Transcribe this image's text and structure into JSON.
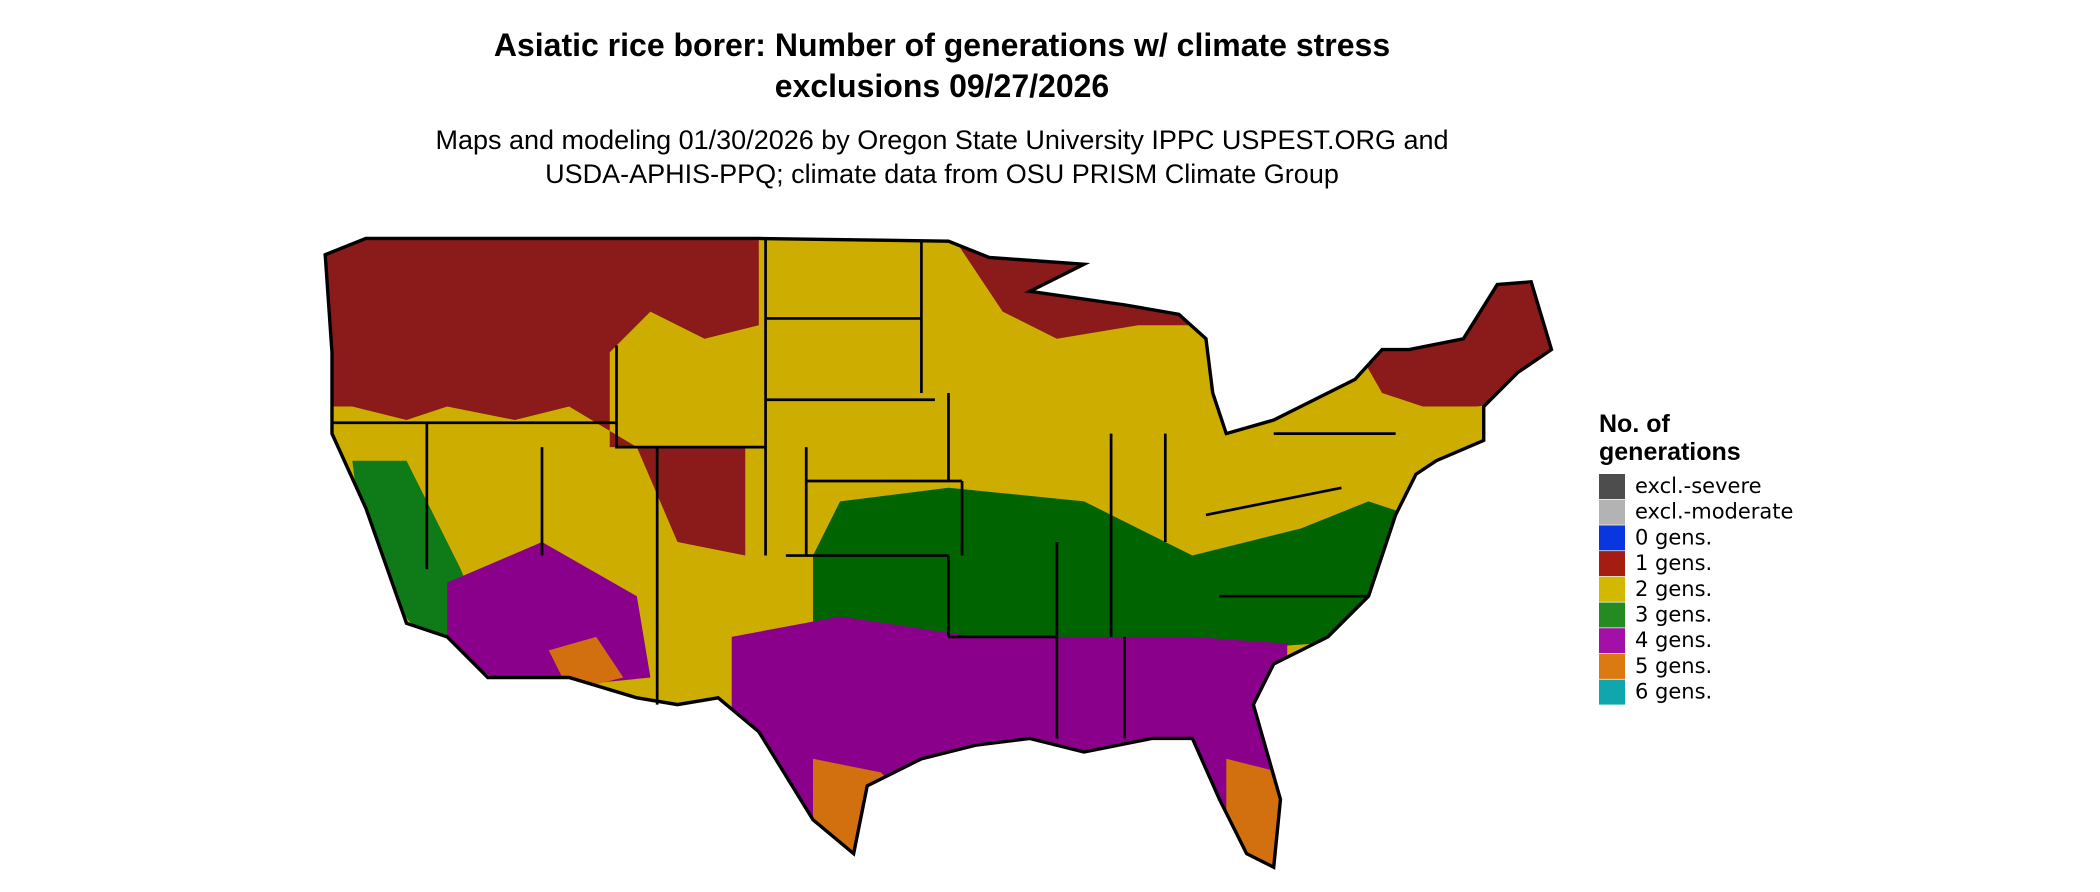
{
  "title": [
    "Asiatic rice borer: Number of generations w/ climate stress",
    "exclusions 09/27/2026"
  ],
  "subtitle": [
    "Maps and modeling 01/30/2026 by Oregon State University IPPC USPEST.ORG and",
    "USDA-APHIS-PPQ; climate data from OSU PRISM Climate Group"
  ],
  "legend": {
    "title": [
      "No. of",
      "generations"
    ],
    "items": [
      {
        "label": "excl.-severe",
        "color": "#4d4d4d"
      },
      {
        "label": "excl.-moderate",
        "color": "#b3b3b3"
      },
      {
        "label": "0 gens.",
        "color": "#0a36e0"
      },
      {
        "label": "1 gens.",
        "color": "#a41c12"
      },
      {
        "label": "2 gens.",
        "color": "#d2b900"
      },
      {
        "label": "3 gens.",
        "color": "#238b22"
      },
      {
        "label": "4 gens.",
        "color": "#a310a8"
      },
      {
        "label": "5 gens.",
        "color": "#dc7a12"
      },
      {
        "label": "6 gens.",
        "color": "#10a6ae"
      }
    ]
  }
}
